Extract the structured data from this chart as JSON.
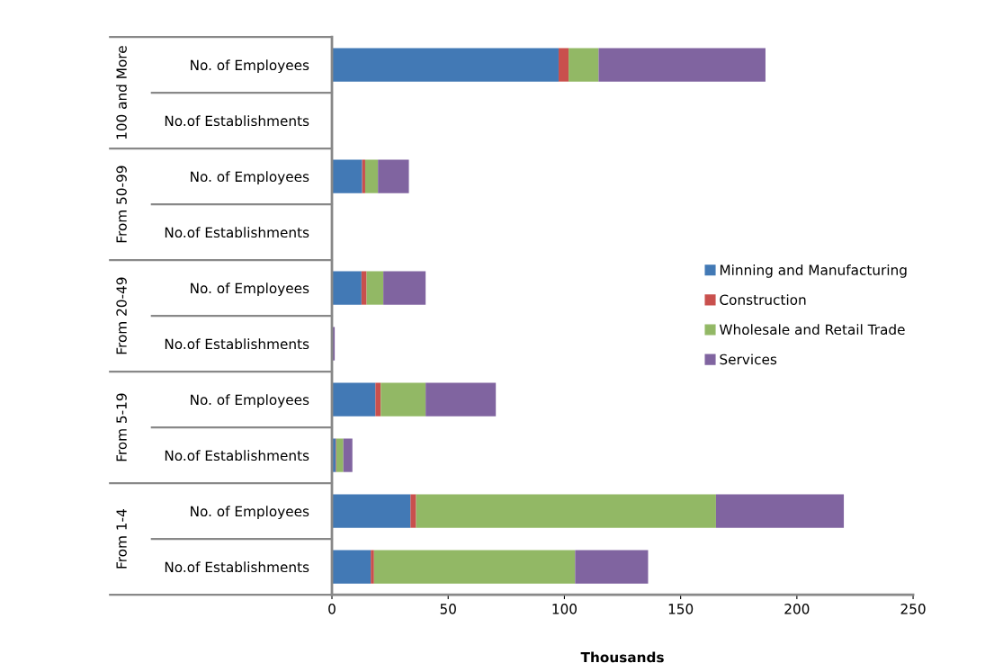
{
  "chart_data": {
    "type": "bar",
    "orientation": "horizontal",
    "stacked": true,
    "categories": [
      "No. of Employees",
      "No.of Establishments",
      "No. of Employees",
      "No.of Establishments",
      "No. of Employees",
      "No.of Establishments",
      "No. of Employees",
      "No.of Establishments",
      "No. of Employees",
      "No.of Establishments"
    ],
    "series": [
      {
        "name": "Minning and Manufacturing",
        "color": "#4279b5",
        "values": [
          97.5,
          0,
          13,
          0,
          12.7,
          0,
          18.7,
          1.7,
          33.8,
          16.7
        ]
      },
      {
        "name": "Construction",
        "color": "#c9504d",
        "values": [
          4.3,
          0,
          1.3,
          0,
          2.2,
          0,
          2.3,
          0.2,
          2.4,
          1.4
        ]
      },
      {
        "name": "Wholesale and Retail Trade",
        "color": "#92b865",
        "values": [
          12.9,
          0,
          5.5,
          0,
          7.2,
          0,
          19.3,
          3.0,
          129,
          86.5
        ]
      },
      {
        "name": "Services",
        "color": "#8064a0",
        "values": [
          71.8,
          0,
          13.3,
          0,
          18.2,
          1.2,
          30.2,
          3.9,
          55,
          31.4
        ]
      }
    ],
    "xlabel": "Thousands",
    "xlim": [
      0,
      250
    ],
    "xticks": [
      0,
      50,
      100,
      150,
      200,
      250
    ],
    "annotations": [
      "100 and More",
      "From 50-99",
      "From 20-49",
      "From 5-19",
      "From 1-4"
    ],
    "grid": false,
    "legend": "right"
  }
}
